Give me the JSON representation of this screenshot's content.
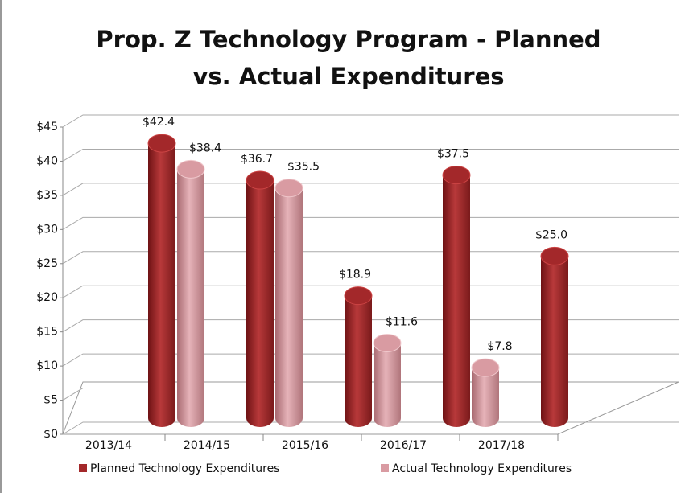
{
  "chart_data": {
    "type": "bar3d",
    "title": "Prop. Z Technology Program - Planned vs. Actual Expenditures",
    "categories": [
      "2013/14",
      "2014/15",
      "2015/16",
      "2016/17",
      "2017/18"
    ],
    "series": [
      {
        "name": "Planned Technology Expenditures",
        "color": "#a3282a",
        "values": [
          42.4,
          36.7,
          18.9,
          37.5,
          25.0
        ],
        "value_labels": [
          "$42.4",
          "$36.7",
          "$18.9",
          "$37.5",
          "$25.0"
        ]
      },
      {
        "name": "Actual Technology Expenditures",
        "color": "#d99ba2",
        "values": [
          38.4,
          35.5,
          11.6,
          7.8,
          null
        ],
        "value_labels": [
          "$38.4",
          "$35.5",
          "$11.6",
          "$7.8",
          null
        ]
      }
    ],
    "ylim": [
      0,
      45
    ],
    "yticks": [
      {
        "value": 0,
        "label": "$0"
      },
      {
        "value": 5,
        "label": "$5"
      },
      {
        "value": 10,
        "label": "$10"
      },
      {
        "value": 15,
        "label": "$15"
      },
      {
        "value": 20,
        "label": "$20"
      },
      {
        "value": 25,
        "label": "$25"
      },
      {
        "value": 30,
        "label": "$30"
      },
      {
        "value": 35,
        "label": "$35"
      },
      {
        "value": 40,
        "label": "$40"
      },
      {
        "value": 45,
        "label": "$45"
      }
    ],
    "grid": true,
    "legend": "bottom"
  }
}
